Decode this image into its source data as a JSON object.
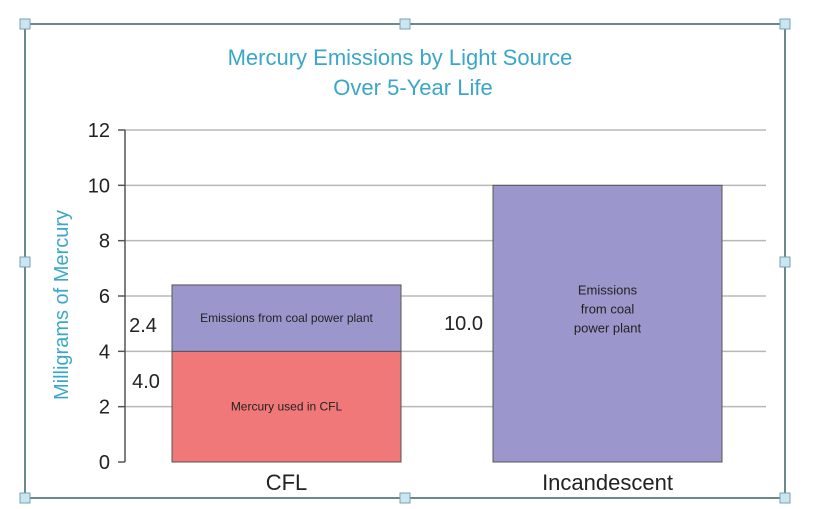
{
  "chart_data": {
    "type": "bar",
    "stacked": true,
    "title": "Mercury Emissions by Light Source",
    "subtitle": "Over 5-Year Life",
    "xlabel": "",
    "ylabel": "Milligrams of Mercury",
    "ylim": [
      0,
      12
    ],
    "yticks": [
      "0",
      "2",
      "4",
      "6",
      "8",
      "10",
      "12"
    ],
    "ytick_values": [
      0,
      2,
      4,
      6,
      8,
      10,
      12
    ],
    "grid": true,
    "categories": [
      "CFL",
      "Incandescent"
    ],
    "series": [
      {
        "name": "Mercury used in CFL",
        "color": "#f07878",
        "values": [
          4.0,
          0
        ],
        "bar_labels": [
          "Mercury used in CFL",
          ""
        ],
        "value_labels": [
          "4.0",
          ""
        ]
      },
      {
        "name": "Emissions from coal power plant",
        "color": "#9b97cc",
        "values": [
          2.4,
          10.0
        ],
        "bar_labels": [
          "Emissions from coal power plant",
          "Emissions\nfrom coal\npower plant"
        ],
        "value_labels": [
          "2.4",
          "10.0"
        ]
      }
    ],
    "colors": {
      "title": "#3aa7c9",
      "ylabel": "#3aa7c9",
      "grid": "#b8b8b8",
      "axis": "#555555",
      "bar_border": "#555555",
      "frame": "#6a8a8a",
      "handle": "#c9e6f2"
    }
  }
}
